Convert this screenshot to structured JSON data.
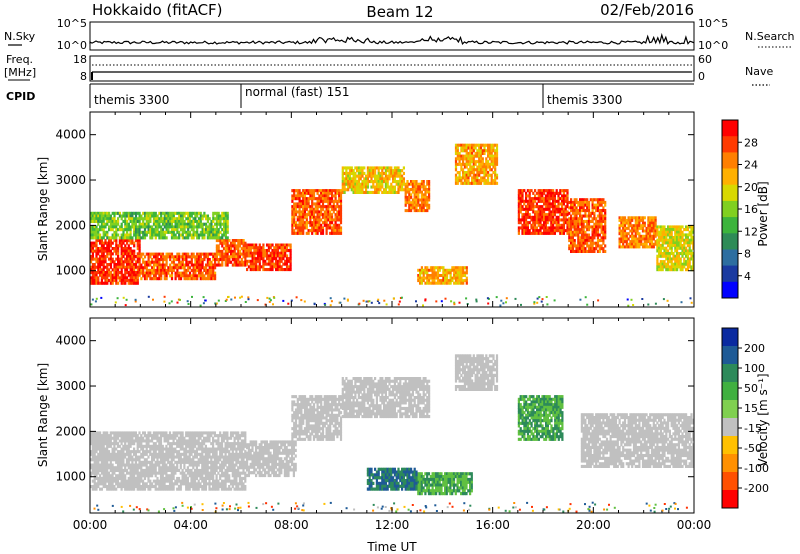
{
  "header": {
    "radar": "Hokkaido (fitACF)",
    "beam": "Beam 12",
    "date": "02/Feb/2016"
  },
  "noise_panel": {
    "left_label": "N.Sky",
    "right_label": "N.Search",
    "left_ticks": [
      "10^5",
      "10^0"
    ],
    "right_ticks": [
      "10^5",
      "10^0"
    ]
  },
  "freq_panel": {
    "left_label_1": "Freq.",
    "left_label_2": "[MHz]",
    "right_label": "Nave",
    "left_ticks": [
      "18",
      "8"
    ],
    "right_ticks": [
      "60",
      "0"
    ]
  },
  "cpid_panel": {
    "label": "CPID",
    "segments": [
      {
        "label": "themis 3300",
        "start_hour": 0
      },
      {
        "label": "normal (fast) 151",
        "start_hour": 6
      },
      {
        "label": "themis 3300",
        "start_hour": 18
      }
    ]
  },
  "power_colorbar": {
    "label": "Power [dB]",
    "ticks": [
      "28",
      "24",
      "20",
      "16",
      "12",
      "8",
      "4"
    ],
    "colors": [
      "#ff0000",
      "#ff3a00",
      "#ff7f00",
      "#ffb000",
      "#d8d800",
      "#80d020",
      "#3cb43c",
      "#2e8b57",
      "#2d6ea0",
      "#1a3aa0",
      "#0000ff"
    ]
  },
  "velocity_colorbar": {
    "label": "Velocity [m s⁻¹]",
    "ticks": [
      "200",
      "100",
      "50",
      "15",
      "-15",
      "-50",
      "-100",
      "-200"
    ],
    "colors": [
      "#0a2aa0",
      "#1e5a96",
      "#2d8a5a",
      "#40b040",
      "#80d050",
      "#c0c0c0",
      "#ffc000",
      "#ff9000",
      "#ff5000",
      "#ff0000"
    ]
  },
  "chart_data": [
    {
      "type": "heatmap",
      "panel": "power",
      "ylabel": "Slant Range [km]",
      "yticks": [
        1000,
        2000,
        3000,
        4000
      ],
      "ylim": [
        200,
        4500
      ],
      "xlim": [
        0,
        24
      ],
      "units": "dB",
      "range_bands": [
        {
          "t0": 0,
          "t1": 2,
          "r0": 700,
          "r1": 1700,
          "value": 28
        },
        {
          "t0": 2,
          "t1": 5,
          "r0": 800,
          "r1": 1400,
          "value": 26
        },
        {
          "t0": 5,
          "t1": 6.2,
          "r0": 1100,
          "r1": 1700,
          "value": 26
        },
        {
          "t0": 6.2,
          "t1": 8,
          "r0": 1000,
          "r1": 1600,
          "value": 27
        },
        {
          "t0": 8,
          "t1": 10,
          "r0": 1800,
          "r1": 2800,
          "value": 26
        },
        {
          "t0": 10,
          "t1": 12.5,
          "r0": 2700,
          "r1": 3300,
          "value": 20
        },
        {
          "t0": 12.5,
          "t1": 13.5,
          "r0": 2300,
          "r1": 3000,
          "value": 24
        },
        {
          "t0": 14.5,
          "t1": 16.2,
          "r0": 2900,
          "r1": 3800,
          "value": 22
        },
        {
          "t0": 17,
          "t1": 19,
          "r0": 1800,
          "r1": 2800,
          "value": 28
        },
        {
          "t0": 19,
          "t1": 20.5,
          "r0": 1400,
          "r1": 2600,
          "value": 26
        },
        {
          "t0": 21,
          "t1": 22.5,
          "r0": 1500,
          "r1": 2200,
          "value": 24
        },
        {
          "t0": 22.5,
          "t1": 24,
          "r0": 1000,
          "r1": 2000,
          "value": 18
        },
        {
          "t0": 0,
          "t1": 5.5,
          "r0": 1700,
          "r1": 2300,
          "value": 14
        },
        {
          "t0": 13,
          "t1": 15,
          "r0": 700,
          "r1": 1100,
          "value": 22
        }
      ]
    },
    {
      "type": "heatmap",
      "panel": "velocity",
      "ylabel": "Slant Range [km]",
      "yticks": [
        1000,
        2000,
        3000,
        4000
      ],
      "ylim": [
        200,
        4500
      ],
      "xlim": [
        0,
        24
      ],
      "xlabel": "Time UT",
      "xticks": [
        "00:00",
        "04:00",
        "08:00",
        "12:00",
        "16:00",
        "20:00",
        "00:00"
      ],
      "units": "m s-1",
      "range_bands": [
        {
          "t0": 0,
          "t1": 6.2,
          "r0": 700,
          "r1": 2000,
          "value": 0
        },
        {
          "t0": 6.2,
          "t1": 8.2,
          "r0": 1000,
          "r1": 1800,
          "value": 0
        },
        {
          "t0": 8,
          "t1": 10,
          "r0": 1800,
          "r1": 2800,
          "value": 0
        },
        {
          "t0": 10,
          "t1": 13.5,
          "r0": 2300,
          "r1": 3200,
          "value": 0
        },
        {
          "t0": 14.5,
          "t1": 16.2,
          "r0": 2900,
          "r1": 3700,
          "value": 0
        },
        {
          "t0": 17,
          "t1": 18.8,
          "r0": 1800,
          "r1": 2800,
          "value": 40
        },
        {
          "t0": 19.5,
          "t1": 24,
          "r0": 1200,
          "r1": 2400,
          "value": 0
        },
        {
          "t0": 13,
          "t1": 15.2,
          "r0": 600,
          "r1": 1100,
          "value": 40
        },
        {
          "t0": 11,
          "t1": 13,
          "r0": 700,
          "r1": 1200,
          "value": 80
        }
      ]
    }
  ]
}
